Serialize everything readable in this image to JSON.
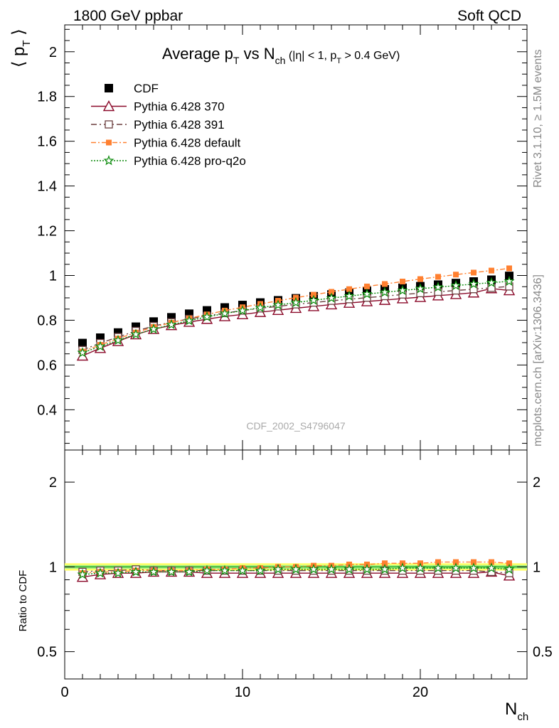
{
  "header": {
    "energy_label": "1800 GeV ppbar",
    "category_label": "Soft QCD"
  },
  "side_labels": {
    "rivet": "Rivet 3.1.10, ≥ 1.5M events",
    "mcplots": "mcplots.cern.ch [arXiv:1306.3436]"
  },
  "colors": {
    "cdf": "#000000",
    "p370": "#8b0a2a",
    "p391": "#6b3f3f",
    "pdefault": "#ff8030",
    "pq2o": "#0a8a0a",
    "band_outer": "#ffff66",
    "band_inner": "#a8f08a",
    "reference_line": "#22aa22"
  },
  "chart_data": [
    {
      "type": "line",
      "panel": "main",
      "title": "Average p_T vs N_ch (|η| < 1, p_T > 0.4 GeV)",
      "title_parts": {
        "main": "Average p",
        "sub1": "T",
        "mid": " vs N",
        "sub2": "ch",
        "cond_a": " (|η| < 1, p",
        "cond_sub": "T",
        "cond_b": " > 0.4 GeV)"
      },
      "ylabel": "⟨ p_T ⟩",
      "ylabel_parts": {
        "main": "⟨ p",
        "sub": "T",
        "end": " ⟩"
      },
      "analysis_id": "CDF_2002_S4796047",
      "xlim": [
        0,
        26
      ],
      "ylim": [
        0.22,
        2.12
      ],
      "yticks": [
        0.4,
        0.6,
        0.8,
        1,
        1.2,
        1.4,
        1.6,
        1.8,
        2
      ],
      "ytick_labels": [
        "0.4",
        "0.6",
        "0.8",
        "1",
        "1.2",
        "1.4",
        "1.6",
        "1.8",
        "2"
      ],
      "legend_position": "top-left",
      "x": [
        1,
        2,
        3,
        4,
        5,
        6,
        7,
        8,
        9,
        10,
        11,
        12,
        13,
        14,
        15,
        16,
        17,
        18,
        19,
        20,
        21,
        22,
        23,
        24,
        25
      ],
      "series": [
        {
          "name": "CDF",
          "key": "cdf",
          "marker": "square",
          "line": "none",
          "values": [
            0.698,
            0.722,
            0.745,
            0.771,
            0.794,
            0.813,
            0.829,
            0.844,
            0.857,
            0.868,
            0.879,
            0.889,
            0.898,
            0.907,
            0.915,
            0.923,
            0.931,
            0.938,
            0.945,
            0.952,
            0.959,
            0.966,
            0.973,
            0.981,
            0.998
          ]
        },
        {
          "name": "Pythia 6.428 370",
          "key": "p370",
          "marker": "triangle",
          "line": "solid",
          "values": [
            0.641,
            0.675,
            0.706,
            0.736,
            0.76,
            0.777,
            0.792,
            0.805,
            0.817,
            0.826,
            0.836,
            0.845,
            0.854,
            0.862,
            0.87,
            0.877,
            0.884,
            0.89,
            0.897,
            0.903,
            0.91,
            0.916,
            0.923,
            0.942,
            0.933
          ]
        },
        {
          "name": "Pythia 6.428 391",
          "key": "p391",
          "marker": "open-square",
          "line": "dashdot",
          "values": [
            0.667,
            0.698,
            0.725,
            0.752,
            0.774,
            0.791,
            0.806,
            0.82,
            0.832,
            0.843,
            0.853,
            0.862,
            0.871,
            0.879,
            0.887,
            0.894,
            0.901,
            0.908,
            0.915,
            0.921,
            0.927,
            0.933,
            0.939,
            0.945,
            0.951
          ]
        },
        {
          "name": "Pythia 6.428 default",
          "key": "pdefault",
          "marker": "small-square",
          "line": "dashdotted",
          "values": [
            0.66,
            0.69,
            0.718,
            0.745,
            0.77,
            0.789,
            0.808,
            0.826,
            0.843,
            0.858,
            0.873,
            0.887,
            0.901,
            0.914,
            0.927,
            0.939,
            0.951,
            0.962,
            0.973,
            0.984,
            0.994,
            1.004,
            1.013,
            1.022,
            1.032
          ]
        },
        {
          "name": "Pythia 6.428 pro-q2o",
          "key": "pq2o",
          "marker": "star",
          "line": "dotted",
          "values": [
            0.655,
            0.683,
            0.71,
            0.737,
            0.76,
            0.78,
            0.798,
            0.815,
            0.83,
            0.843,
            0.856,
            0.868,
            0.879,
            0.889,
            0.899,
            0.908,
            0.917,
            0.925,
            0.933,
            0.941,
            0.948,
            0.955,
            0.962,
            0.968,
            0.974
          ]
        }
      ]
    },
    {
      "type": "line",
      "panel": "ratio",
      "xlabel": "N_ch",
      "xlabel_parts": {
        "main": "N",
        "sub": "ch"
      },
      "ylabel": "Ratio to CDF",
      "xlim": [
        0,
        26
      ],
      "ylim": [
        0.4,
        2.6
      ],
      "yscale": "log",
      "yticks": [
        0.5,
        1,
        2
      ],
      "ytick_labels": [
        "0.5",
        "1",
        "2"
      ],
      "xticks": [
        0,
        10,
        20
      ],
      "xtick_labels": [
        "0",
        "10",
        "20"
      ],
      "x": [
        1,
        2,
        3,
        4,
        5,
        6,
        7,
        8,
        9,
        10,
        11,
        12,
        13,
        14,
        15,
        16,
        17,
        18,
        19,
        20,
        21,
        22,
        23,
        24,
        25
      ],
      "series": [
        {
          "name": "Pythia 6.428 370",
          "key": "p370",
          "values": [
            0.92,
            0.94,
            0.95,
            0.95,
            0.96,
            0.96,
            0.96,
            0.95,
            0.95,
            0.95,
            0.95,
            0.95,
            0.95,
            0.95,
            0.95,
            0.95,
            0.95,
            0.95,
            0.95,
            0.95,
            0.95,
            0.95,
            0.95,
            0.96,
            0.93
          ]
        },
        {
          "name": "Pythia 6.428 391",
          "key": "p391",
          "values": [
            0.96,
            0.97,
            0.97,
            0.98,
            0.97,
            0.97,
            0.97,
            0.97,
            0.97,
            0.97,
            0.97,
            0.97,
            0.97,
            0.97,
            0.97,
            0.97,
            0.97,
            0.97,
            0.97,
            0.97,
            0.97,
            0.97,
            0.97,
            0.96,
            0.95
          ]
        },
        {
          "name": "Pythia 6.428 default",
          "key": "pdefault",
          "values": [
            0.95,
            0.96,
            0.96,
            0.97,
            0.97,
            0.97,
            0.97,
            0.98,
            0.98,
            0.99,
            0.99,
            1.0,
            1.0,
            1.01,
            1.01,
            1.02,
            1.02,
            1.03,
            1.03,
            1.03,
            1.04,
            1.04,
            1.04,
            1.04,
            1.03
          ]
        },
        {
          "name": "Pythia 6.428 pro-q2o",
          "key": "pq2o",
          "values": [
            0.94,
            0.95,
            0.95,
            0.96,
            0.96,
            0.96,
            0.96,
            0.97,
            0.97,
            0.97,
            0.97,
            0.98,
            0.98,
            0.98,
            0.98,
            0.98,
            0.98,
            0.98,
            0.99,
            0.99,
            0.99,
            0.99,
            0.99,
            0.99,
            0.98
          ]
        }
      ]
    }
  ]
}
